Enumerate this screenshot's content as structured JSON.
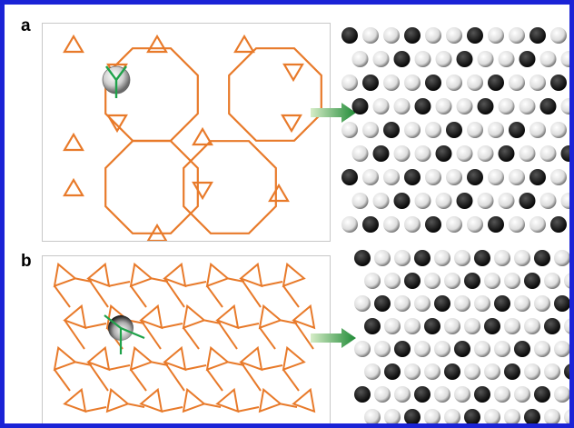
{
  "panels": [
    {
      "label": "a",
      "schematic": "octagonal-triangle-network",
      "arrow": "right-arrow-icon"
    },
    {
      "label": "b",
      "schematic": "distorted-triangle-network",
      "arrow": "right-arrow-icon"
    }
  ],
  "colors": {
    "border": "#1a23d6",
    "network": "#e87a2a",
    "bond": "#1fa24a",
    "arrow_start": "#c9e7b5",
    "arrow_end": "#1f8a36",
    "sphere_dark": "#111111",
    "sphere_light": "#f2f2f2"
  }
}
